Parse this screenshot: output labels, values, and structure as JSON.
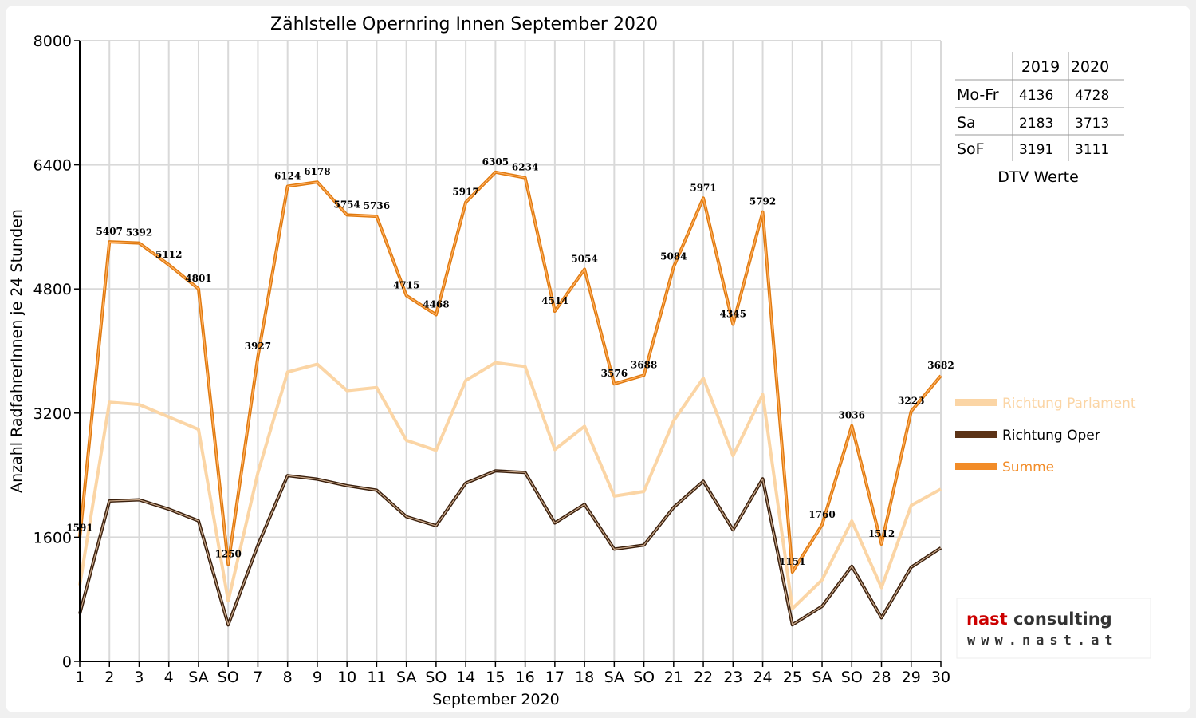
{
  "chart_data": {
    "type": "line",
    "title": "Zählstelle Opernring Innen September 2020",
    "xlabel": "September 2020",
    "ylabel": "Anzahl RadfahrerInnen je 24 Stunden",
    "ylim": [
      0,
      8000
    ],
    "yticks": [
      "0",
      "1600",
      "3200",
      "4800",
      "6400",
      "8000"
    ],
    "grid": true,
    "legend_position": "right",
    "categories": [
      "1",
      "2",
      "3",
      "4",
      "SA",
      "SO",
      "7",
      "8",
      "9",
      "10",
      "11",
      "SA",
      "SO",
      "14",
      "15",
      "16",
      "17",
      "18",
      "SA",
      "SO",
      "21",
      "22",
      "23",
      "24",
      "25",
      "SA",
      "SO",
      "28",
      "29",
      "30"
    ],
    "sunday_indices": [
      5,
      12,
      19,
      26
    ],
    "series": [
      {
        "name": "Richtung Parlament",
        "color": "#fbd5a5",
        "values": [
          980,
          3340,
          3310,
          3150,
          2990,
          780,
          2430,
          3730,
          3830,
          3490,
          3530,
          2850,
          2720,
          3620,
          3850,
          3800,
          2730,
          3030,
          2130,
          2190,
          3100,
          3650,
          2650,
          3440,
          680,
          1050,
          1810,
          950,
          2010,
          2220
        ]
      },
      {
        "name": "Richtung Oper",
        "color": "#5c3317",
        "values": [
          611,
          2067,
          2082,
          1962,
          1811,
          470,
          1497,
          2394,
          2348,
          2264,
          2206,
          1865,
          1748,
          2297,
          2455,
          2434,
          1784,
          2024,
          1446,
          1498,
          1984,
          2321,
          1695,
          2352,
          471,
          710,
          1226,
          562,
          1213,
          1462
        ]
      },
      {
        "name": "Summe",
        "color": "#f28c28",
        "values": [
          1591,
          5407,
          5392,
          5112,
          4801,
          1250,
          3927,
          6124,
          6178,
          5754,
          5736,
          4715,
          4468,
          5917,
          6305,
          6234,
          4514,
          5054,
          3576,
          3688,
          5084,
          5971,
          4345,
          5792,
          1151,
          1760,
          3036,
          1512,
          3223,
          3682
        ]
      }
    ]
  },
  "dtv_table": {
    "headers": [
      "",
      "2019",
      "2020"
    ],
    "rows": [
      {
        "label": "Mo-Fr",
        "v2019": "4136",
        "v2020": "4728"
      },
      {
        "label": "Sa",
        "v2019": "2183",
        "v2020": "3713"
      },
      {
        "label": "SoF",
        "v2019": "3191",
        "v2020": "3111"
      }
    ],
    "caption": "DTV Werte"
  },
  "logo": {
    "brand_first": "nast",
    "brand_second": "consulting",
    "url": "www.nast.at",
    "color_first": "#cc0000",
    "color_second": "#333333"
  },
  "colors": {
    "sunday_label": "#ff0000",
    "grid": "#d9d9d9"
  }
}
